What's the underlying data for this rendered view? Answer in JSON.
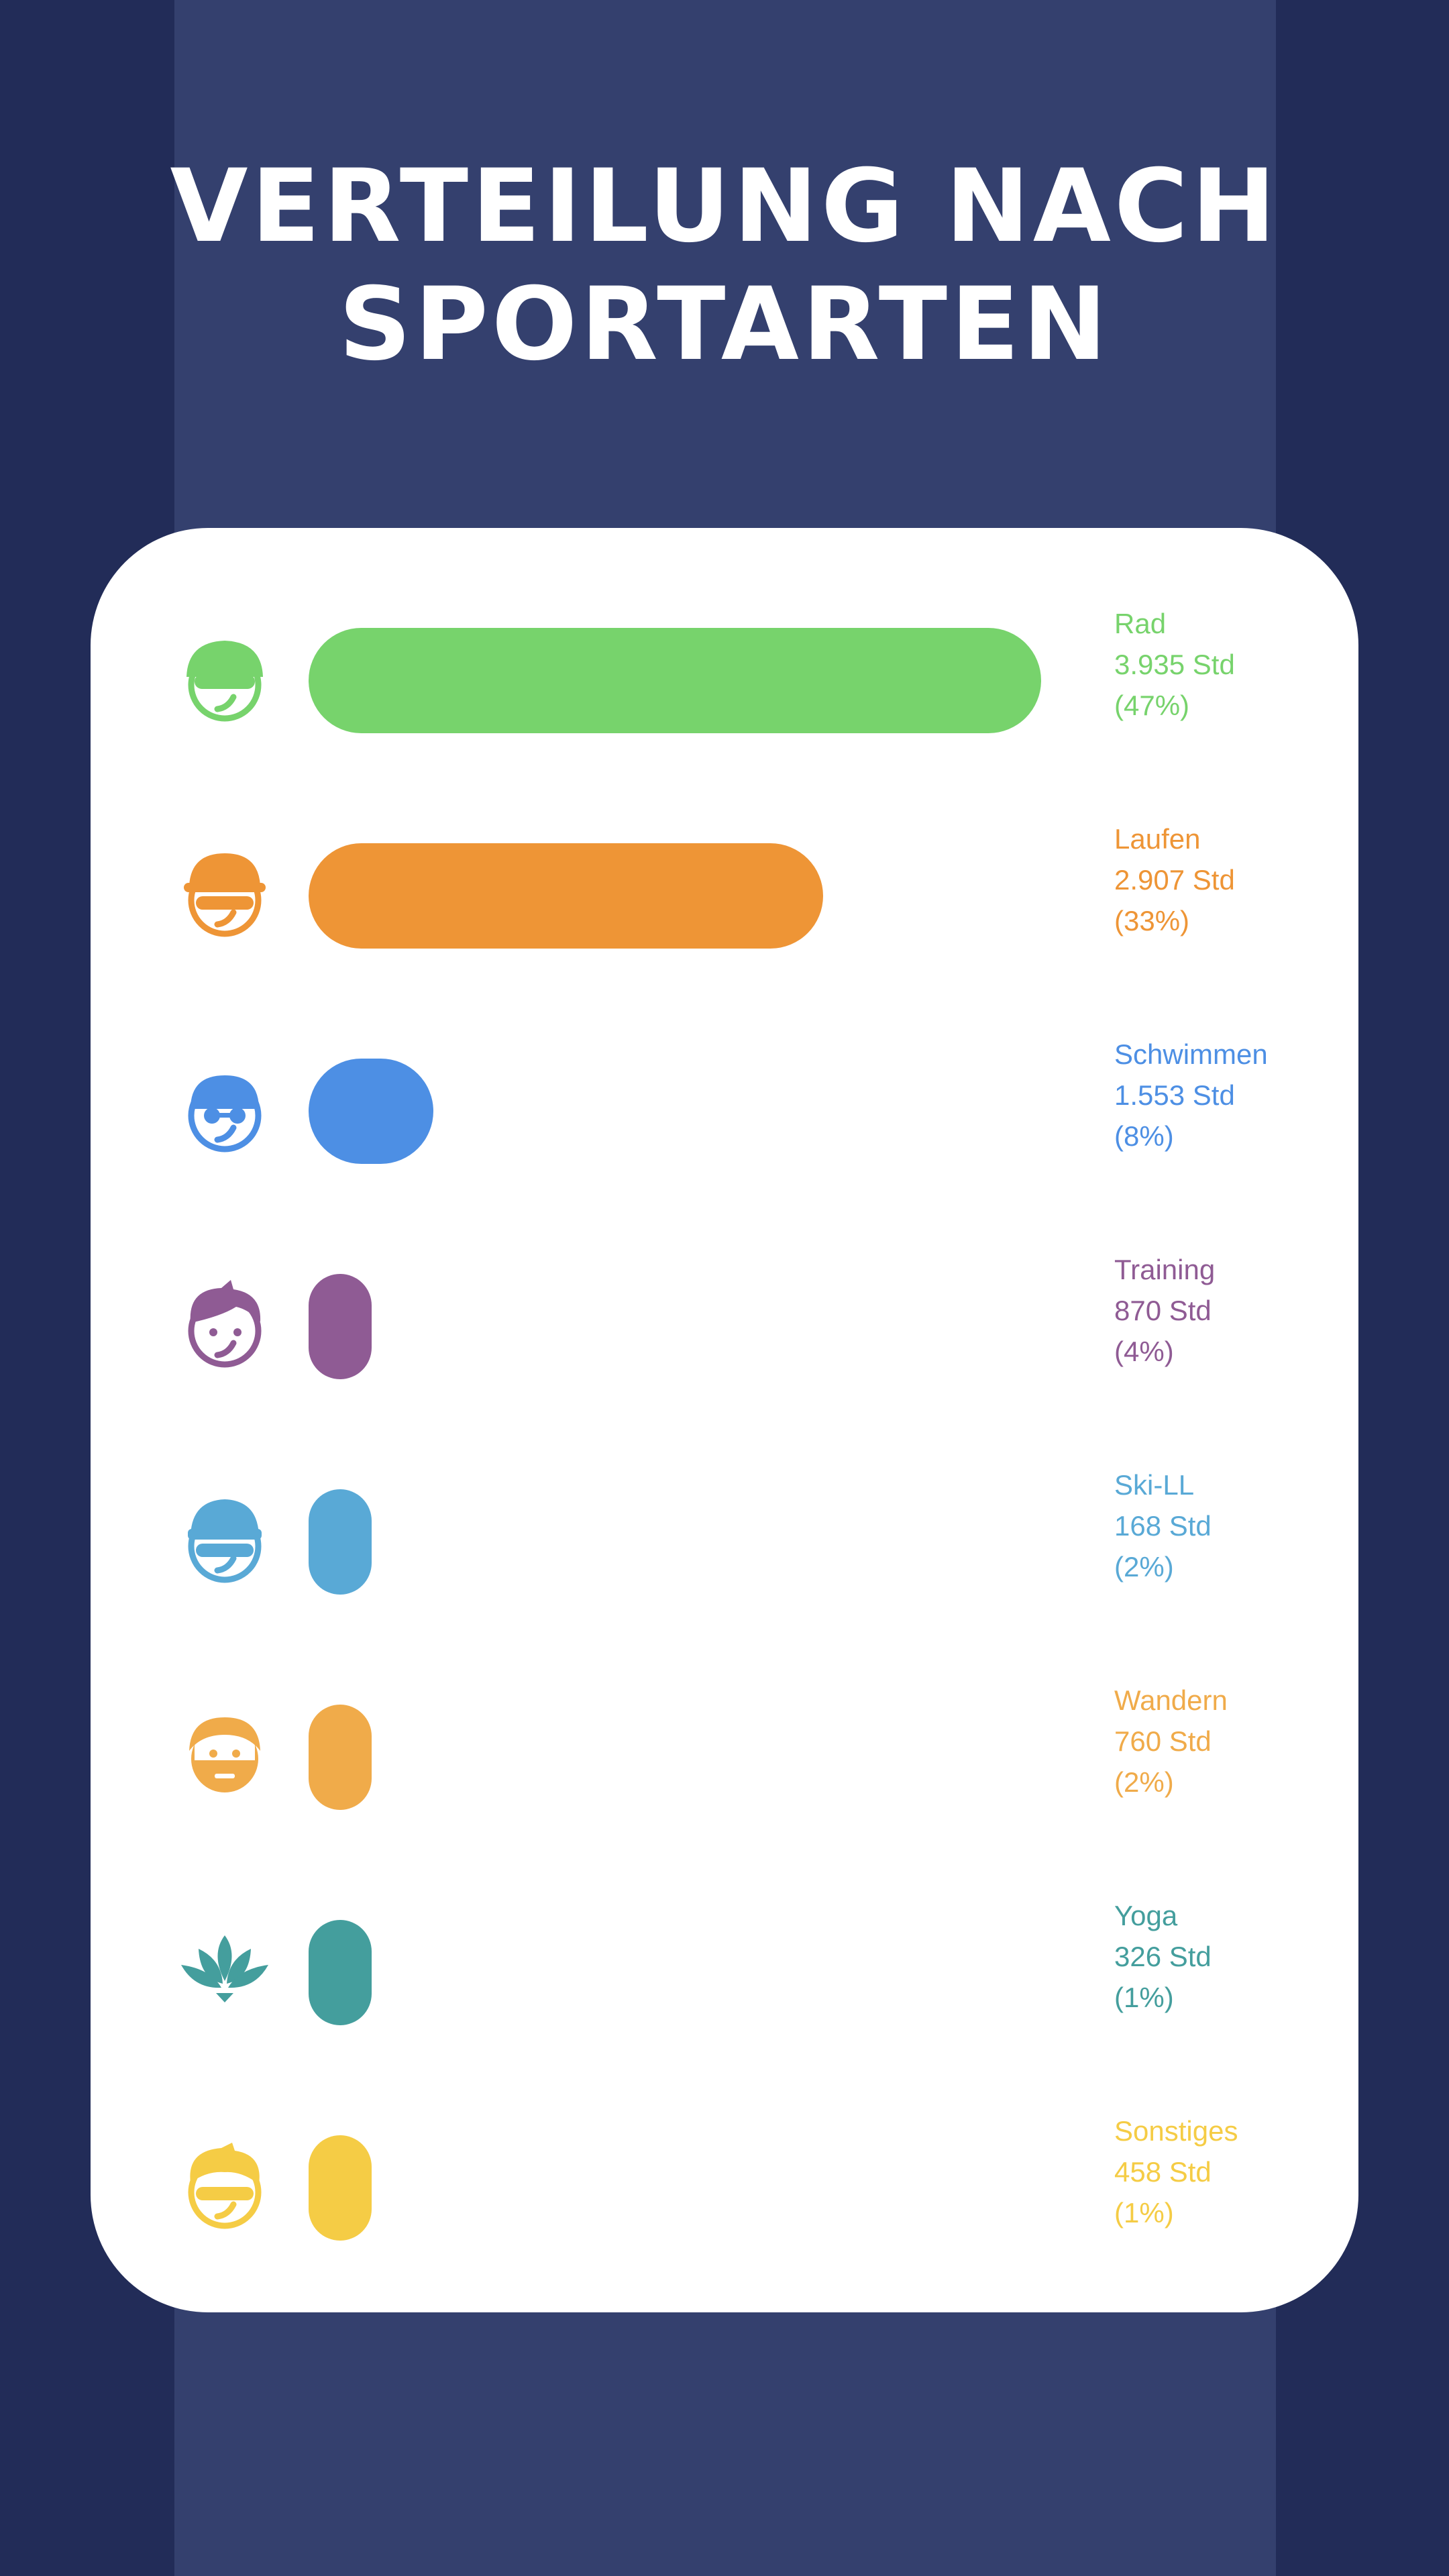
{
  "title_line1": "VERTEILUNG NACH",
  "title_line2": "SPORTARTEN",
  "chart_data": {
    "type": "bar",
    "orientation": "horizontal",
    "title": "VERTEILUNG NACH SPORTARTEN",
    "xlabel": "",
    "ylabel": "",
    "categories": [
      "Rad",
      "Laufen",
      "Schwimmen",
      "Training",
      "Ski-LL",
      "Wandern",
      "Yoga",
      "Sonstiges"
    ],
    "values": [
      47,
      33,
      8,
      4,
      2,
      2,
      1,
      1
    ],
    "xlim": [
      0,
      47
    ],
    "grid": false,
    "legend": "none",
    "rows": [
      {
        "name": "Rad",
        "hours": "3.935 Std",
        "percent_label": "(47%)",
        "percent": 47,
        "color": "#77d36c",
        "icon": "cyclist-helmet-icon"
      },
      {
        "name": "Laufen",
        "hours": "2.907 Std",
        "percent_label": "(33%)",
        "percent": 33,
        "color": "#ee9536",
        "icon": "runner-cap-icon"
      },
      {
        "name": "Schwimmen",
        "hours": "1.553 Std",
        "percent_label": "(8%)",
        "percent": 8,
        "color": "#4d8fe4",
        "icon": "swimmer-goggles-icon"
      },
      {
        "name": "Training",
        "hours": "870 Std",
        "percent_label": "(4%)",
        "percent": 4,
        "color": "#8f5b94",
        "icon": "athlete-face-icon"
      },
      {
        "name": "Ski-LL",
        "hours": "168 Std",
        "percent_label": "(2%)",
        "percent": 2,
        "color": "#59a9d6",
        "icon": "skier-beanie-icon"
      },
      {
        "name": "Wandern",
        "hours": "760 Std",
        "percent_label": "(2%)",
        "percent": 2,
        "color": "#f0ab4a",
        "icon": "hiker-beard-icon"
      },
      {
        "name": "Yoga",
        "hours": "326 Std",
        "percent_label": "(1%)",
        "percent": 1,
        "color": "#449e9d",
        "icon": "lotus-icon"
      },
      {
        "name": "Sonstiges",
        "hours": "458 Std",
        "percent_label": "(1%)",
        "percent": 1,
        "color": "#f5cc45",
        "icon": "person-sunglasses-icon"
      }
    ]
  }
}
